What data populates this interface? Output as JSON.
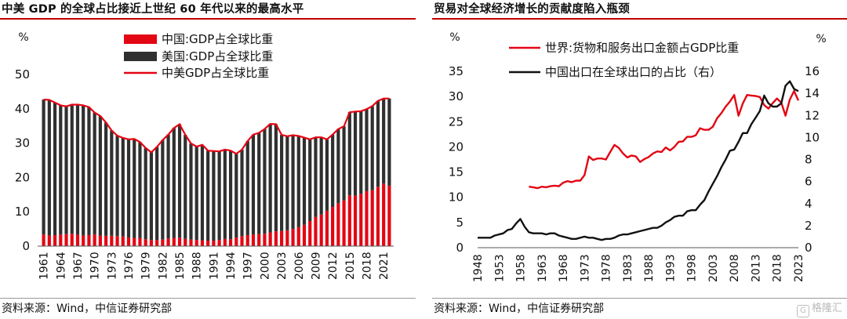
{
  "left": {
    "title": "中美 GDP 的全球占比接近上世纪 60 年代以来的最高水平",
    "source": "资料来源：Wind，中信证券研究部"
  },
  "right": {
    "title": "贸易对全球经济增长的贡献度陷入瓶颈",
    "source": "资料来源：Wind，中信证券研究部"
  },
  "watermark": {
    "icon": "G",
    "text": "格隆汇"
  },
  "chart_data": [
    {
      "type": "bar",
      "stacked": true,
      "title": "",
      "ylabel": "%",
      "ylim": [
        0,
        50
      ],
      "yticks": [
        0,
        10,
        20,
        30,
        40,
        50
      ],
      "xtick_labels": [
        "1961",
        "1964",
        "1967",
        "1970",
        "1973",
        "1976",
        "1979",
        "1982",
        "1985",
        "1988",
        "1991",
        "1994",
        "1997",
        "2000",
        "2003",
        "2006",
        "2009",
        "2012",
        "2015",
        "2018",
        "2021"
      ],
      "x": [
        1961,
        1962,
        1963,
        1964,
        1965,
        1966,
        1967,
        1968,
        1969,
        1970,
        1971,
        1972,
        1973,
        1974,
        1975,
        1976,
        1977,
        1978,
        1979,
        1980,
        1981,
        1982,
        1983,
        1984,
        1985,
        1986,
        1987,
        1988,
        1989,
        1990,
        1991,
        1992,
        1993,
        1994,
        1995,
        1996,
        1997,
        1998,
        1999,
        2000,
        2001,
        2002,
        2003,
        2004,
        2005,
        2006,
        2007,
        2008,
        2009,
        2010,
        2011,
        2012,
        2013,
        2014,
        2015,
        2016,
        2017,
        2018,
        2019,
        2020,
        2021,
        2022
      ],
      "series": [
        {
          "name": "中国:GDP占全球比重",
          "kind": "bar",
          "color": "#e30613",
          "values": [
            3.4,
            3.1,
            3.2,
            3.4,
            3.5,
            3.6,
            3.3,
            3.1,
            3.2,
            3.4,
            3.1,
            3.0,
            3.0,
            2.9,
            2.8,
            2.5,
            2.4,
            2.4,
            2.0,
            1.8,
            1.8,
            1.9,
            2.2,
            2.4,
            2.5,
            2.1,
            1.9,
            1.8,
            1.7,
            1.6,
            1.6,
            1.8,
            2.1,
            2.0,
            2.5,
            2.9,
            3.2,
            3.4,
            3.5,
            3.6,
            4.0,
            4.3,
            4.4,
            4.6,
            5.0,
            5.5,
            6.2,
            7.3,
            8.5,
            9.2,
            10.3,
            11.4,
            12.5,
            13.3,
            14.8,
            14.7,
            15.2,
            16.0,
            16.3,
            17.3,
            18.2,
            17.6
          ]
        },
        {
          "name": "美国:GDP占全球比重",
          "kind": "bar",
          "color": "#303030",
          "values": [
            39.3,
            39.5,
            38.6,
            37.6,
            37.2,
            37.6,
            37.9,
            37.9,
            37.3,
            35.5,
            34.8,
            33.0,
            30.7,
            29.3,
            28.7,
            28.6,
            28.8,
            27.9,
            26.6,
            25.5,
            27.1,
            29.0,
            30.3,
            32.0,
            33.0,
            30.3,
            28.0,
            27.2,
            27.8,
            26.2,
            26.1,
            25.8,
            26.0,
            25.8,
            24.4,
            25.2,
            27.4,
            29.1,
            29.5,
            30.5,
            31.6,
            31.2,
            28.0,
            27.4,
            27.3,
            26.6,
            25.4,
            23.8,
            23.2,
            22.5,
            20.8,
            21.1,
            21.6,
            21.6,
            24.2,
            24.5,
            24.1,
            23.9,
            24.5,
            25.0,
            24.8,
            25.4
          ]
        },
        {
          "name": "中美GDP占全球比重",
          "kind": "line",
          "color": "#e30613",
          "values": [
            42.7,
            42.6,
            41.8,
            41.0,
            40.7,
            41.2,
            41.2,
            41.0,
            40.5,
            38.9,
            37.9,
            36.0,
            33.7,
            32.2,
            31.5,
            31.1,
            31.2,
            30.3,
            28.6,
            27.3,
            28.9,
            30.9,
            32.5,
            34.4,
            35.5,
            32.4,
            29.9,
            29.0,
            29.5,
            27.8,
            27.7,
            27.6,
            28.1,
            27.8,
            26.9,
            28.1,
            30.6,
            32.5,
            33.0,
            34.1,
            35.6,
            35.5,
            32.4,
            32.0,
            32.3,
            32.1,
            31.6,
            31.1,
            31.7,
            31.7,
            31.1,
            32.5,
            34.1,
            34.9,
            39.0,
            39.2,
            39.3,
            39.9,
            40.8,
            42.3,
            43.0,
            43.0
          ]
        }
      ]
    },
    {
      "type": "line",
      "title": "",
      "ylabel_left": "%",
      "ylabel_right": "%",
      "ylim_left": [
        0,
        35
      ],
      "yticks_left": [
        0,
        5,
        10,
        15,
        20,
        25,
        30,
        35
      ],
      "ylim_right": [
        0,
        16
      ],
      "yticks_right": [
        0,
        2,
        4,
        6,
        8,
        10,
        12,
        14,
        16
      ],
      "xtick_labels": [
        "1948",
        "1953",
        "1958",
        "1963",
        "1968",
        "1973",
        "1978",
        "1983",
        "1988",
        "1993",
        "1998",
        "2003",
        "2008",
        "2013",
        "2018",
        "2023"
      ],
      "series": [
        {
          "name": "世界:货物和服务出口金额占GDP比重",
          "axis": "left",
          "color": "#e30613",
          "points": [
            [
              1960,
              12.1
            ],
            [
              1961,
              12.0
            ],
            [
              1962,
              11.8
            ],
            [
              1963,
              12.1
            ],
            [
              1964,
              12.0
            ],
            [
              1965,
              12.2
            ],
            [
              1966,
              12.3
            ],
            [
              1967,
              12.2
            ],
            [
              1968,
              12.9
            ],
            [
              1969,
              13.2
            ],
            [
              1970,
              13.0
            ],
            [
              1971,
              13.3
            ],
            [
              1972,
              13.3
            ],
            [
              1973,
              14.4
            ],
            [
              1974,
              18.1
            ],
            [
              1975,
              17.4
            ],
            [
              1976,
              17.7
            ],
            [
              1977,
              17.7
            ],
            [
              1978,
              17.5
            ],
            [
              1979,
              19.0
            ],
            [
              1980,
              20.4
            ],
            [
              1981,
              19.8
            ],
            [
              1982,
              18.7
            ],
            [
              1983,
              17.9
            ],
            [
              1984,
              18.3
            ],
            [
              1985,
              18.1
            ],
            [
              1986,
              17.0
            ],
            [
              1987,
              17.6
            ],
            [
              1988,
              18.0
            ],
            [
              1989,
              18.7
            ],
            [
              1990,
              19.1
            ],
            [
              1991,
              19.0
            ],
            [
              1992,
              19.9
            ],
            [
              1993,
              19.3
            ],
            [
              1994,
              20.0
            ],
            [
              1995,
              21.0
            ],
            [
              1996,
              21.1
            ],
            [
              1997,
              22.0
            ],
            [
              1998,
              22.0
            ],
            [
              1999,
              22.3
            ],
            [
              2000,
              23.7
            ],
            [
              2001,
              23.4
            ],
            [
              2002,
              23.4
            ],
            [
              2003,
              24.0
            ],
            [
              2004,
              25.7
            ],
            [
              2005,
              26.7
            ],
            [
              2006,
              28.0
            ],
            [
              2007,
              29.0
            ],
            [
              2008,
              30.3
            ],
            [
              2009,
              26.2
            ],
            [
              2010,
              28.6
            ],
            [
              2011,
              30.3
            ],
            [
              2012,
              30.2
            ],
            [
              2013,
              30.1
            ],
            [
              2014,
              29.9
            ],
            [
              2015,
              28.3
            ],
            [
              2016,
              27.6
            ],
            [
              2017,
              28.7
            ],
            [
              2018,
              29.6
            ],
            [
              2019,
              28.8
            ],
            [
              2020,
              26.2
            ],
            [
              2021,
              29.4
            ],
            [
              2022,
              31.1
            ],
            [
              2023,
              29.2
            ]
          ]
        },
        {
          "name": "中国出口在全球出口的占比（右）",
          "axis": "right",
          "color": "#111111",
          "points": [
            [
              1948,
              0.9
            ],
            [
              1950,
              0.9
            ],
            [
              1951,
              0.9
            ],
            [
              1952,
              1.1
            ],
            [
              1953,
              1.2
            ],
            [
              1954,
              1.3
            ],
            [
              1955,
              1.6
            ],
            [
              1956,
              1.7
            ],
            [
              1957,
              2.2
            ],
            [
              1958,
              2.6
            ],
            [
              1959,
              1.9
            ],
            [
              1960,
              1.4
            ],
            [
              1961,
              1.3
            ],
            [
              1962,
              1.3
            ],
            [
              1963,
              1.3
            ],
            [
              1964,
              1.2
            ],
            [
              1965,
              1.3
            ],
            [
              1966,
              1.3
            ],
            [
              1967,
              1.1
            ],
            [
              1968,
              1.0
            ],
            [
              1969,
              0.9
            ],
            [
              1970,
              0.8
            ],
            [
              1971,
              0.8
            ],
            [
              1972,
              0.9
            ],
            [
              1973,
              1.0
            ],
            [
              1974,
              0.9
            ],
            [
              1975,
              0.9
            ],
            [
              1976,
              0.8
            ],
            [
              1977,
              0.7
            ],
            [
              1978,
              0.8
            ],
            [
              1979,
              0.8
            ],
            [
              1980,
              0.9
            ],
            [
              1981,
              1.1
            ],
            [
              1982,
              1.2
            ],
            [
              1983,
              1.2
            ],
            [
              1984,
              1.3
            ],
            [
              1985,
              1.4
            ],
            [
              1986,
              1.5
            ],
            [
              1987,
              1.6
            ],
            [
              1988,
              1.7
            ],
            [
              1989,
              1.8
            ],
            [
              1990,
              1.8
            ],
            [
              1991,
              2.0
            ],
            [
              1992,
              2.3
            ],
            [
              1993,
              2.5
            ],
            [
              1994,
              2.8
            ],
            [
              1995,
              2.9
            ],
            [
              1996,
              2.9
            ],
            [
              1997,
              3.3
            ],
            [
              1998,
              3.4
            ],
            [
              1999,
              3.4
            ],
            [
              2000,
              3.9
            ],
            [
              2001,
              4.3
            ],
            [
              2002,
              5.1
            ],
            [
              2003,
              5.8
            ],
            [
              2004,
              6.5
            ],
            [
              2005,
              7.3
            ],
            [
              2006,
              8.0
            ],
            [
              2007,
              8.8
            ],
            [
              2008,
              8.9
            ],
            [
              2009,
              9.6
            ],
            [
              2010,
              10.4
            ],
            [
              2011,
              10.4
            ],
            [
              2012,
              11.2
            ],
            [
              2013,
              11.8
            ],
            [
              2014,
              12.4
            ],
            [
              2015,
              13.8
            ],
            [
              2016,
              13.1
            ],
            [
              2017,
              12.8
            ],
            [
              2018,
              12.8
            ],
            [
              2019,
              13.1
            ],
            [
              2020,
              14.7
            ],
            [
              2021,
              15.1
            ],
            [
              2022,
              14.4
            ],
            [
              2023,
              14.2
            ]
          ]
        }
      ]
    }
  ]
}
